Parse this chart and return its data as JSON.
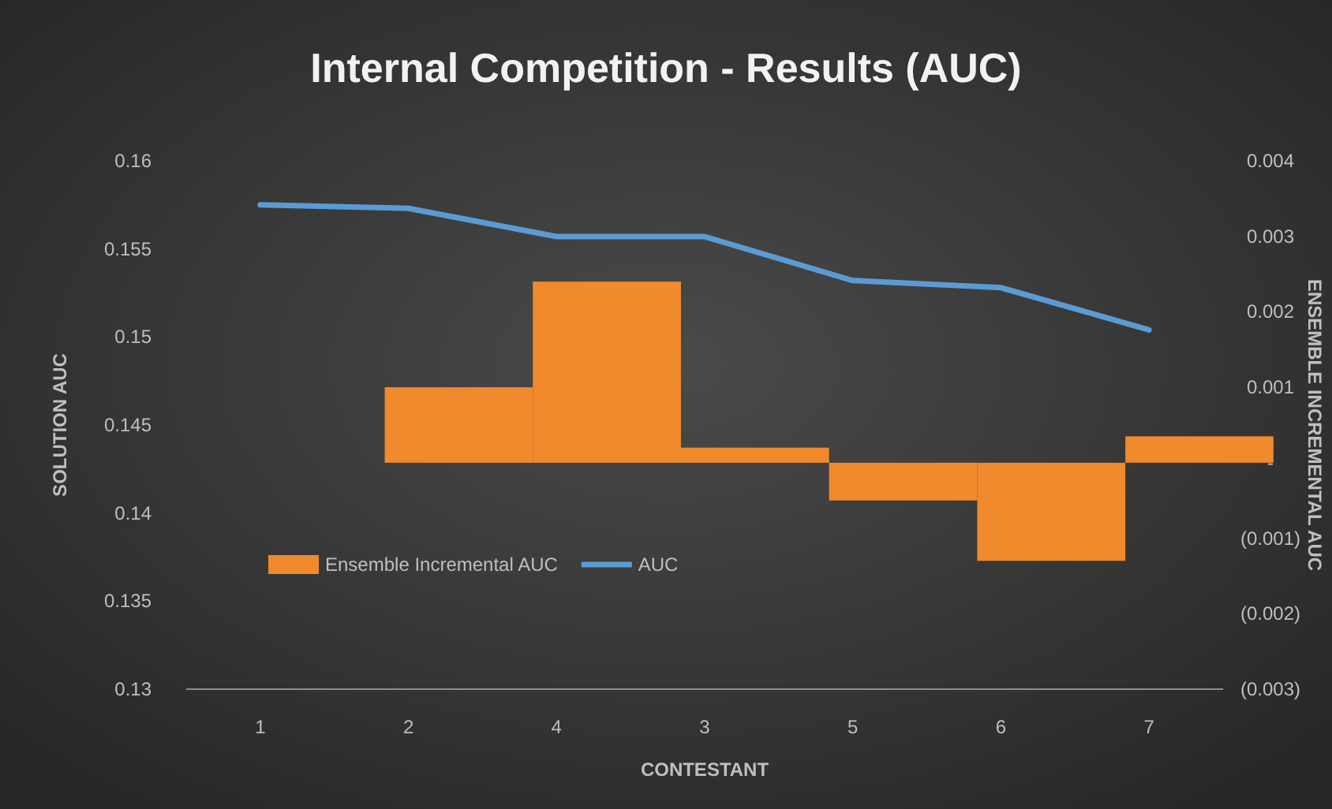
{
  "chart_data": {
    "type": "bar",
    "title": "Internal Competition - Results (AUC)",
    "xlabel": "CONTESTANT",
    "ylabel": "SOLUTION AUC",
    "y2label": "ENSEMBLE INCREMENTAL AUC",
    "categories": [
      "1",
      "2",
      "4",
      "3",
      "5",
      "6",
      "7"
    ],
    "series": [
      {
        "name": "Ensemble Incremental AUC",
        "axis": "y2",
        "color": "#f08a2c",
        "values": [
          0,
          0.001,
          0.0024,
          0.0002,
          -0.0005,
          -0.0013,
          0.00035
        ]
      },
      {
        "name": "AUC",
        "type": "line",
        "axis": "y",
        "color": "#5b9bd5",
        "values": [
          0.1575,
          0.1573,
          0.1557,
          0.1557,
          0.1532,
          0.1528,
          0.1504
        ]
      }
    ],
    "ylim": [
      0.13,
      0.16
    ],
    "yticks": [
      0.13,
      0.135,
      0.14,
      0.145,
      0.15,
      0.155,
      0.16
    ],
    "y2lim": [
      -0.003,
      0.004
    ],
    "y2ticks": [
      {
        "value": -0.003,
        "label": "(0.003)"
      },
      {
        "value": -0.002,
        "label": "(0.002)"
      },
      {
        "value": -0.001,
        "label": "(0.001)"
      },
      {
        "value": 0,
        "label": "-"
      },
      {
        "value": 0.001,
        "label": "0.001"
      },
      {
        "value": 0.002,
        "label": "0.002"
      },
      {
        "value": 0.003,
        "label": "0.003"
      },
      {
        "value": 0.004,
        "label": "0.004"
      }
    ],
    "legend": "bottom left"
  }
}
